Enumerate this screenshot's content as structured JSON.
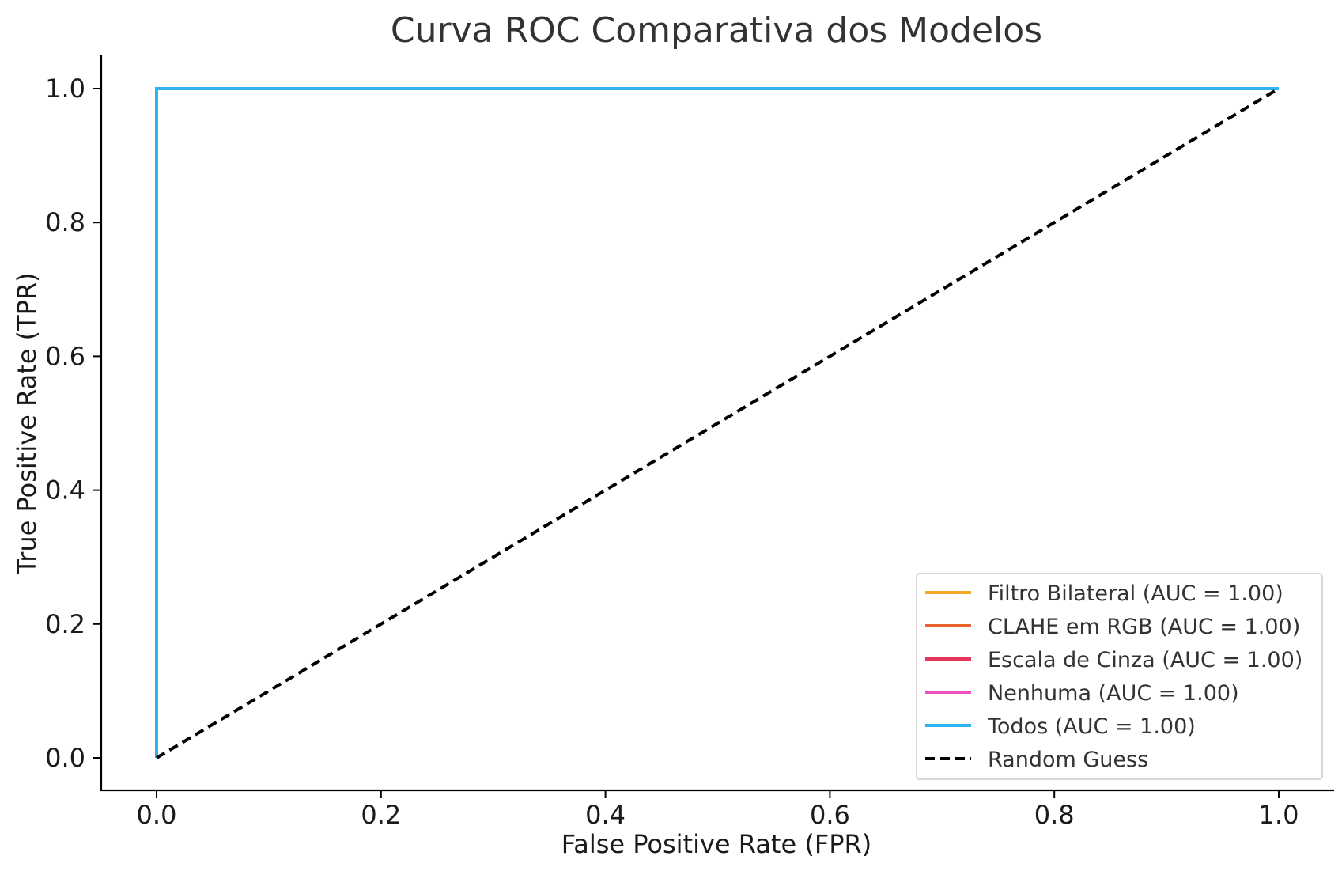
{
  "chart_data": {
    "type": "line",
    "title": "Curva ROC Comparativa dos Modelos",
    "xlabel": "False Positive Rate (FPR)",
    "ylabel": "True Positive Rate (TPR)",
    "xlim": [
      -0.05,
      1.05
    ],
    "ylim": [
      -0.05,
      1.05
    ],
    "xticks": [
      0.0,
      0.2,
      0.4,
      0.6,
      0.8,
      1.0
    ],
    "yticks": [
      0.0,
      0.2,
      0.4,
      0.6,
      0.8,
      1.0
    ],
    "tick_labels": [
      "0.0",
      "0.2",
      "0.4",
      "0.6",
      "0.8",
      "1.0"
    ],
    "grid": false,
    "legend_position": "lower-right",
    "series": [
      {
        "name": "Filtro Bilateral (AUC = 1.00)",
        "color": "#f5a623",
        "dash": "solid",
        "x": [
          0.0,
          0.0,
          1.0
        ],
        "y": [
          0.0,
          1.0,
          1.0
        ]
      },
      {
        "name": "CLAHE em RGB (AUC = 1.00)",
        "color": "#e8632b",
        "dash": "solid",
        "x": [
          0.0,
          0.0,
          1.0
        ],
        "y": [
          0.0,
          1.0,
          1.0
        ]
      },
      {
        "name": "Escala de Cinza (AUC = 1.00)",
        "color": "#e8345a",
        "dash": "solid",
        "x": [
          0.0,
          0.0,
          1.0
        ],
        "y": [
          0.0,
          1.0,
          1.0
        ]
      },
      {
        "name": "Nenhuma (AUC = 1.00)",
        "color": "#ee4fc2",
        "dash": "solid",
        "x": [
          0.0,
          0.0,
          1.0
        ],
        "y": [
          0.0,
          1.0,
          1.0
        ]
      },
      {
        "name": "Todos (AUC = 1.00)",
        "color": "#2fb3f0",
        "dash": "solid",
        "x": [
          0.0,
          0.0,
          1.0
        ],
        "y": [
          0.0,
          1.0,
          1.0
        ]
      },
      {
        "name": "Random Guess",
        "color": "#000000",
        "dash": "dashed",
        "x": [
          0.0,
          1.0
        ],
        "y": [
          0.0,
          1.0
        ]
      }
    ]
  }
}
